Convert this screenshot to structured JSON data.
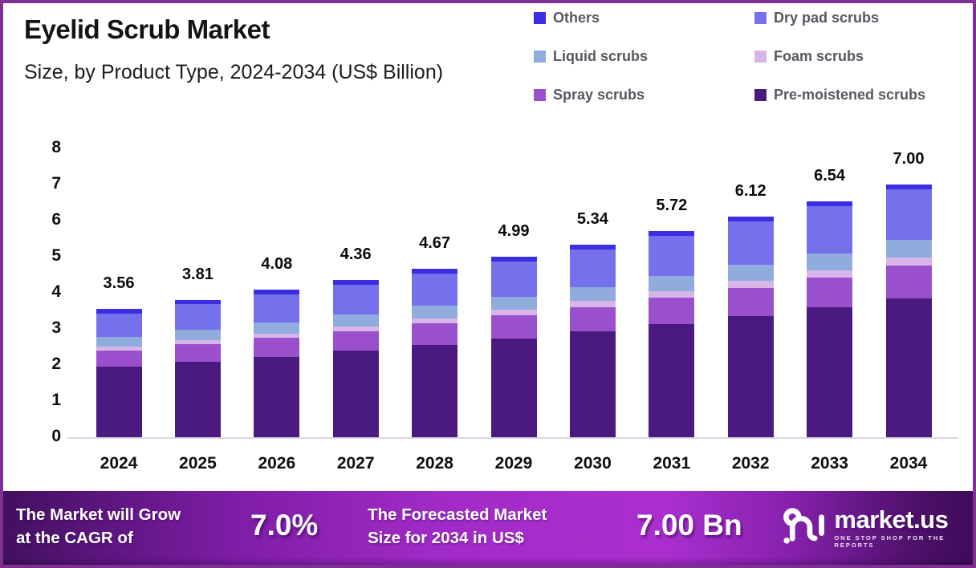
{
  "header": {
    "title": "Eyelid Scrub Market",
    "subtitle": "Size, by Product Type, 2024-2034 (US$ Billion)"
  },
  "legend": {
    "items": [
      {
        "label": "Others",
        "color": "#3B2EE1"
      },
      {
        "label": "Dry pad scrubs",
        "color": "#7571ED"
      },
      {
        "label": "Liquid scrubs",
        "color": "#90ACDC"
      },
      {
        "label": "Foam scrubs",
        "color": "#D7B5E9"
      },
      {
        "label": "Spray scrubs",
        "color": "#9A50CC"
      },
      {
        "label": "Pre-moistened scrubs",
        "color": "#4A1A80"
      }
    ]
  },
  "chart_data": {
    "type": "bar",
    "stacked": true,
    "title": "Eyelid Scrub Market",
    "subtitle": "Size, by Product Type, 2024-2034 (US$ Billion)",
    "unit": "US$ Billion",
    "categories": [
      "2024",
      "2025",
      "2026",
      "2027",
      "2028",
      "2029",
      "2030",
      "2031",
      "2032",
      "2033",
      "2034"
    ],
    "series": [
      {
        "name": "Pre-moistened scrubs",
        "color": "#4A1A80",
        "values": [
          1.95,
          2.09,
          2.23,
          2.39,
          2.56,
          2.74,
          2.93,
          3.14,
          3.36,
          3.59,
          3.85
        ]
      },
      {
        "name": "Spray scrubs",
        "color": "#9A50CC",
        "values": [
          0.45,
          0.48,
          0.52,
          0.55,
          0.59,
          0.64,
          0.68,
          0.73,
          0.78,
          0.84,
          0.9
        ]
      },
      {
        "name": "Foam scrubs",
        "color": "#D7B5E9",
        "values": [
          0.1,
          0.11,
          0.12,
          0.13,
          0.14,
          0.15,
          0.16,
          0.17,
          0.19,
          0.2,
          0.22
        ]
      },
      {
        "name": "Liquid scrubs",
        "color": "#90ACDC",
        "values": [
          0.27,
          0.29,
          0.31,
          0.32,
          0.35,
          0.37,
          0.39,
          0.42,
          0.44,
          0.47,
          0.5
        ]
      },
      {
        "name": "Dry pad scrubs",
        "color": "#7571ED",
        "values": [
          0.66,
          0.71,
          0.77,
          0.83,
          0.89,
          0.96,
          1.04,
          1.12,
          1.2,
          1.3,
          1.4
        ]
      },
      {
        "name": "Others",
        "color": "#3B2EE1",
        "values": [
          0.13,
          0.13,
          0.13,
          0.14,
          0.14,
          0.13,
          0.14,
          0.14,
          0.15,
          0.14,
          0.13
        ]
      }
    ],
    "totals_labels": [
      "3.56",
      "3.81",
      "4.08",
      "4.36",
      "4.67",
      "4.99",
      "5.34",
      "5.72",
      "6.12",
      "6.54",
      "7.00"
    ],
    "ylim": [
      0,
      8
    ],
    "ytick_step": 1,
    "yticks": [
      "0",
      "1",
      "2",
      "3",
      "4",
      "5",
      "6",
      "7",
      "8"
    ],
    "grid": false,
    "legend_position": "top-right",
    "series_order_note": "series listed bottom-to-top of stack"
  },
  "banner": {
    "cagr_label": "The Market will Grow\nat the CAGR of",
    "cagr_value": "7.0%",
    "forecast_label": "The Forecasted Market\nSize for 2034 in US$",
    "forecast_value": "7.00 Bn",
    "logo": {
      "wordmark": "market.us",
      "tagline": "ONE STOP SHOP FOR THE REPORTS"
    }
  },
  "colors": {
    "frame_border": "#7e2f92",
    "axis_line": "#dcd5e3",
    "banner_gradient_left": "#41105f",
    "banner_gradient_mid": "#aa2fce",
    "banner_gradient_right": "#3d0b58",
    "text_dark": "#141414",
    "legend_text": "#585862"
  }
}
